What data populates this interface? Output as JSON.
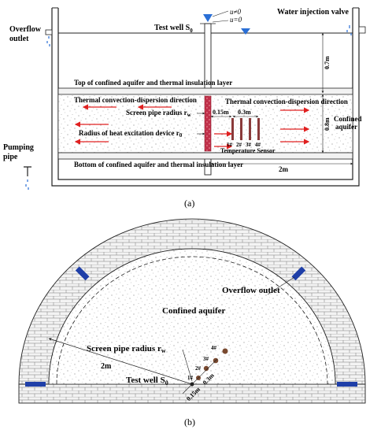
{
  "panel_a": {
    "caption": "(a)",
    "labels": {
      "overflow_outlet": [
        "Overflow",
        "outlet"
      ],
      "test_well": "Test well S",
      "test_well_sub": "0",
      "u_ne": "u≠0",
      "u_eq": "u=0",
      "water_injection_valve": "Water injection valve",
      "top_layer": "Top of confined aquifer and thermal insulation layer",
      "convection_left": "Thermal convection-dispersion direction",
      "convection_right": "Thermal convection-dispersion direction",
      "screen_pipe_radius": "Screen pipe radius r",
      "screen_pipe_radius_sub": "w",
      "heat_device_radius": "Radius of heat excitation device r",
      "heat_device_radius_sub": "0",
      "temperature_sensor": "Temperature Sensor",
      "confined_aquifer": [
        "Confined",
        "aquifer"
      ],
      "bottom_layer": "Bottom of confined aquifer and thermal insulation layer",
      "pumping_pipe": [
        "Pumping",
        "pipe"
      ],
      "dim_07m": "0.7m",
      "dim_08m": "0.8m",
      "dim_015m": "0.15m",
      "dim_03m": "0.3m",
      "dim_2m": "2m",
      "sensors": [
        "1#",
        "2#",
        "3#",
        "4#"
      ]
    }
  },
  "panel_b": {
    "caption": "(b)",
    "labels": {
      "overflow_outlet": "Overflow outlet",
      "confined_aquifer": "Confined aquifer",
      "screen_pipe_radius": "Screen pipe radius r",
      "screen_pipe_radius_sub": "w",
      "dim_2m": "2m",
      "test_well": "Test well S",
      "test_well_sub": "0",
      "dim_015m": "0.15m",
      "dim_03m": "0.3m",
      "sensors": [
        "1#",
        "2#",
        "3#",
        "4#"
      ]
    }
  },
  "colors": {
    "line": "#222222",
    "arrow_red": "#e02020",
    "heat_device": "#c0304a",
    "sensor_rod": "#8a3a3a",
    "sensor_dot": "#7a4a30",
    "water_blue": "#2a6fd6",
    "brick_blue": "#1f3fa8",
    "layer_fill": "#f2f2f2"
  }
}
